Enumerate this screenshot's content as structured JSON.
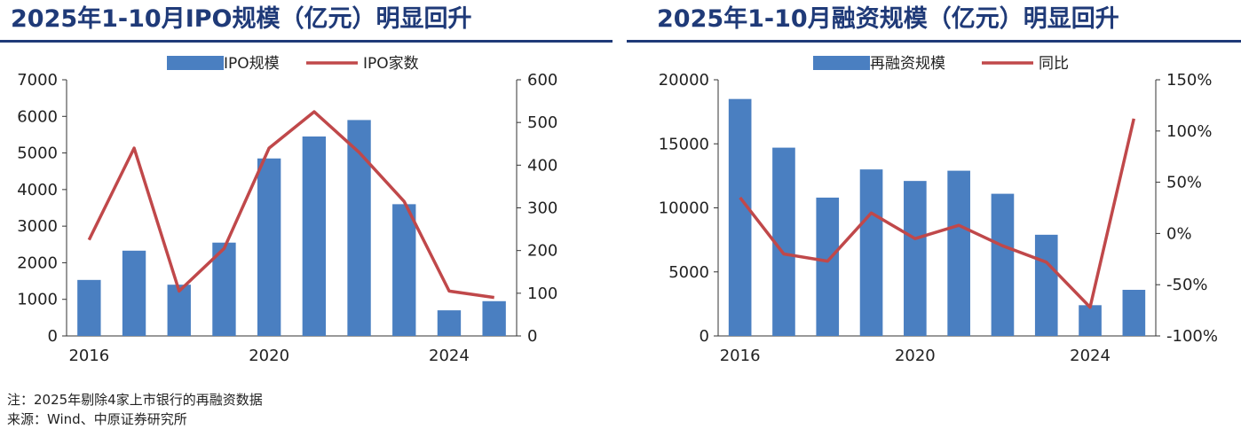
{
  "titles": {
    "left": "2025年1-10月IPO规模（亿元）明显回升",
    "right": "2025年1-10月融资规模（亿元）明显回升"
  },
  "colors": {
    "bar": "#4a7fc1",
    "line": "#c0484a",
    "title": "#1f3a78",
    "axis": "#333333"
  },
  "footnotes": {
    "note": "注：2025年剔除4家上市银行的再融资数据",
    "source": "来源：Wind、中原证券研究所"
  },
  "chart_data": [
    {
      "type": "bar",
      "x": [
        2016,
        2017,
        2018,
        2019,
        2020,
        2021,
        2022,
        2023,
        2024,
        2025
      ],
      "x_tick_labels": [
        "2016",
        "2020",
        "2024"
      ],
      "series": [
        {
          "name": "IPO规模",
          "type": "bar",
          "axis": "left",
          "values": [
            1530,
            2330,
            1400,
            2550,
            4850,
            5450,
            5900,
            3600,
            700,
            950
          ]
        },
        {
          "name": "IPO家数",
          "type": "line",
          "axis": "right",
          "values": [
            225,
            440,
            105,
            205,
            440,
            525,
            430,
            315,
            105,
            90
          ]
        }
      ],
      "y_left": {
        "range": [
          0,
          7000
        ],
        "ticks": [
          "0",
          "1000",
          "2000",
          "3000",
          "4000",
          "5000",
          "6000",
          "7000"
        ]
      },
      "y_right": {
        "range": [
          0,
          600
        ],
        "ticks": [
          "0",
          "100",
          "200",
          "300",
          "400",
          "500",
          "600"
        ]
      },
      "legend": "top",
      "grid": false
    },
    {
      "type": "bar",
      "x": [
        2016,
        2017,
        2018,
        2019,
        2020,
        2021,
        2022,
        2023,
        2024,
        2025
      ],
      "x_tick_labels": [
        "2016",
        "2020",
        "2024"
      ],
      "series": [
        {
          "name": "再融资规模",
          "type": "bar",
          "axis": "left",
          "values": [
            18500,
            14700,
            10800,
            13000,
            12100,
            12900,
            11100,
            7900,
            2400,
            3600
          ]
        },
        {
          "name": "同比",
          "type": "line",
          "axis": "right",
          "values": [
            35,
            -20,
            -27,
            20,
            -5,
            8,
            -12,
            -28,
            -72,
            112
          ]
        }
      ],
      "y_left": {
        "range": [
          0,
          20000
        ],
        "ticks": [
          "0",
          "5000",
          "10000",
          "15000",
          "20000"
        ]
      },
      "y_right": {
        "range": [
          -100,
          150
        ],
        "unit": "%",
        "ticks": [
          "-100%",
          "-50%",
          "0%",
          "50%",
          "100%",
          "150%"
        ]
      },
      "legend": "top",
      "grid": false
    }
  ]
}
